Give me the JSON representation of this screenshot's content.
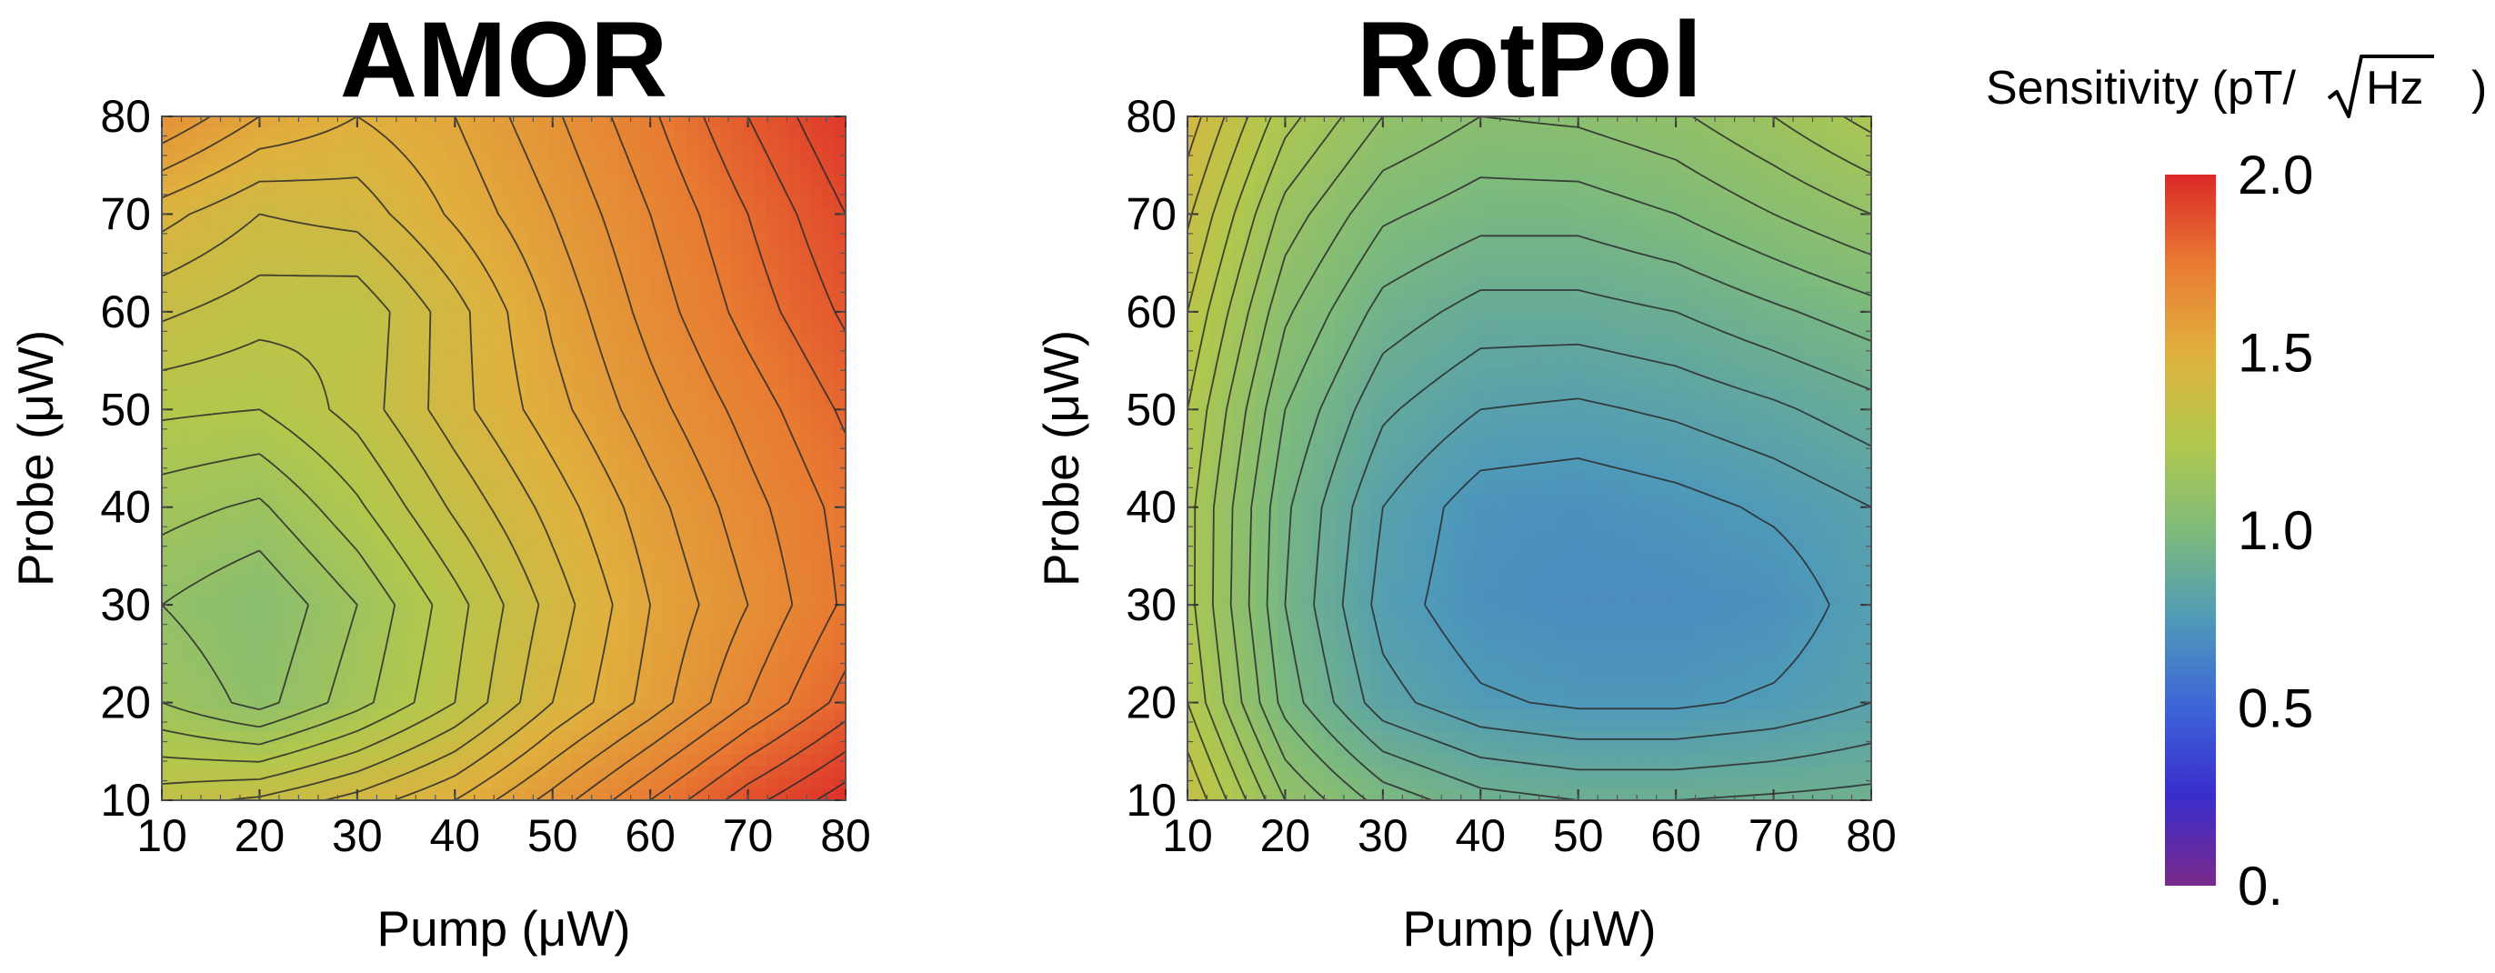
{
  "chart_data": [
    {
      "type": "heatmap",
      "title": "AMOR",
      "xlabel": "Pump (μW)",
      "ylabel": "Probe (μW)",
      "xlim": [
        10,
        80
      ],
      "ylim": [
        10,
        80
      ],
      "xticks": [
        "10",
        "20",
        "30",
        "40",
        "50",
        "60",
        "70",
        "80"
      ],
      "yticks": [
        "10",
        "20",
        "30",
        "40",
        "50",
        "60",
        "70",
        "80"
      ],
      "grid_x": [
        10,
        20,
        30,
        40,
        50,
        60,
        70,
        80
      ],
      "grid_y": [
        10,
        20,
        30,
        40,
        50,
        60,
        70,
        80
      ],
      "values": [
        [
          1.33,
          1.36,
          1.42,
          1.5,
          1.62,
          1.75,
          1.88,
          1.98
        ],
        [
          1.15,
          1.08,
          1.18,
          1.3,
          1.45,
          1.57,
          1.7,
          1.82
        ],
        [
          1.1,
          1.05,
          1.15,
          1.28,
          1.42,
          1.55,
          1.65,
          1.76
        ],
        [
          1.17,
          1.14,
          1.24,
          1.36,
          1.47,
          1.58,
          1.68,
          1.77
        ],
        [
          1.26,
          1.25,
          1.32,
          1.43,
          1.53,
          1.63,
          1.72,
          1.81
        ],
        [
          1.36,
          1.32,
          1.31,
          1.43,
          1.56,
          1.67,
          1.77,
          1.86
        ],
        [
          1.47,
          1.4,
          1.42,
          1.51,
          1.6,
          1.7,
          1.8,
          1.9
        ],
        [
          1.65,
          1.55,
          1.5,
          1.55,
          1.64,
          1.74,
          1.85,
          1.95
        ]
      ],
      "contour_levels": [
        1.1,
        1.15,
        1.2,
        1.25,
        1.3,
        1.35,
        1.4,
        1.45,
        1.5,
        1.55,
        1.6,
        1.65,
        1.7,
        1.75,
        1.8,
        1.85,
        1.9,
        1.95
      ]
    },
    {
      "type": "heatmap",
      "title": "RotPol",
      "xlabel": "Pump (μW)",
      "ylabel": "Probe (μW)",
      "xlim": [
        10,
        80
      ],
      "ylim": [
        10,
        80
      ],
      "xticks": [
        "10",
        "20",
        "30",
        "40",
        "50",
        "60",
        "70",
        "80"
      ],
      "yticks": [
        "10",
        "20",
        "30",
        "40",
        "50",
        "60",
        "70",
        "80"
      ],
      "grid_x": [
        10,
        20,
        30,
        40,
        50,
        60,
        70,
        80
      ],
      "grid_y": [
        10,
        20,
        30,
        40,
        50,
        60,
        70,
        80
      ],
      "values": [
        [
          1.35,
          1.1,
          0.98,
          0.92,
          0.9,
          0.9,
          0.91,
          0.92
        ],
        [
          1.25,
          0.98,
          0.82,
          0.76,
          0.74,
          0.74,
          0.76,
          0.8
        ],
        [
          1.22,
          0.95,
          0.78,
          0.71,
          0.69,
          0.69,
          0.71,
          0.78
        ],
        [
          1.22,
          0.96,
          0.8,
          0.72,
          0.71,
          0.73,
          0.76,
          0.8
        ],
        [
          1.25,
          1.0,
          0.86,
          0.8,
          0.79,
          0.81,
          0.84,
          0.88
        ],
        [
          1.3,
          1.06,
          0.93,
          0.88,
          0.88,
          0.9,
          0.94,
          0.98
        ],
        [
          1.36,
          1.13,
          1.01,
          0.97,
          0.97,
          1.0,
          1.05,
          1.1
        ],
        [
          1.43,
          1.22,
          1.1,
          1.05,
          1.06,
          1.09,
          1.15,
          1.22
        ]
      ],
      "contour_levels": [
        0.75,
        0.8,
        0.85,
        0.9,
        0.95,
        1.0,
        1.05,
        1.1,
        1.15,
        1.2,
        1.25,
        1.3,
        1.35,
        1.4
      ]
    }
  ],
  "colorbar": {
    "title_prefix": "Sensitivity (pT/",
    "title_sqrt": "Hz",
    "title_suffix": ")",
    "min": 0,
    "max": 2,
    "ticks": [
      {
        "value": 2.0,
        "label": "2.0"
      },
      {
        "value": 1.5,
        "label": "1.5"
      },
      {
        "value": 1.0,
        "label": "1.0"
      },
      {
        "value": 0.5,
        "label": "0.5"
      },
      {
        "value": 0.0,
        "label": "0."
      }
    ],
    "stops": [
      {
        "value": 0.0,
        "color": "#7a2a8a"
      },
      {
        "value": 0.25,
        "color": "#3a2ccc"
      },
      {
        "value": 0.5,
        "color": "#3c64d8"
      },
      {
        "value": 0.75,
        "color": "#4f9ab8"
      },
      {
        "value": 1.0,
        "color": "#7fbb7a"
      },
      {
        "value": 1.25,
        "color": "#b2c84c"
      },
      {
        "value": 1.5,
        "color": "#e0b03e"
      },
      {
        "value": 1.75,
        "color": "#e87b32"
      },
      {
        "value": 2.0,
        "color": "#dc2828"
      }
    ]
  }
}
